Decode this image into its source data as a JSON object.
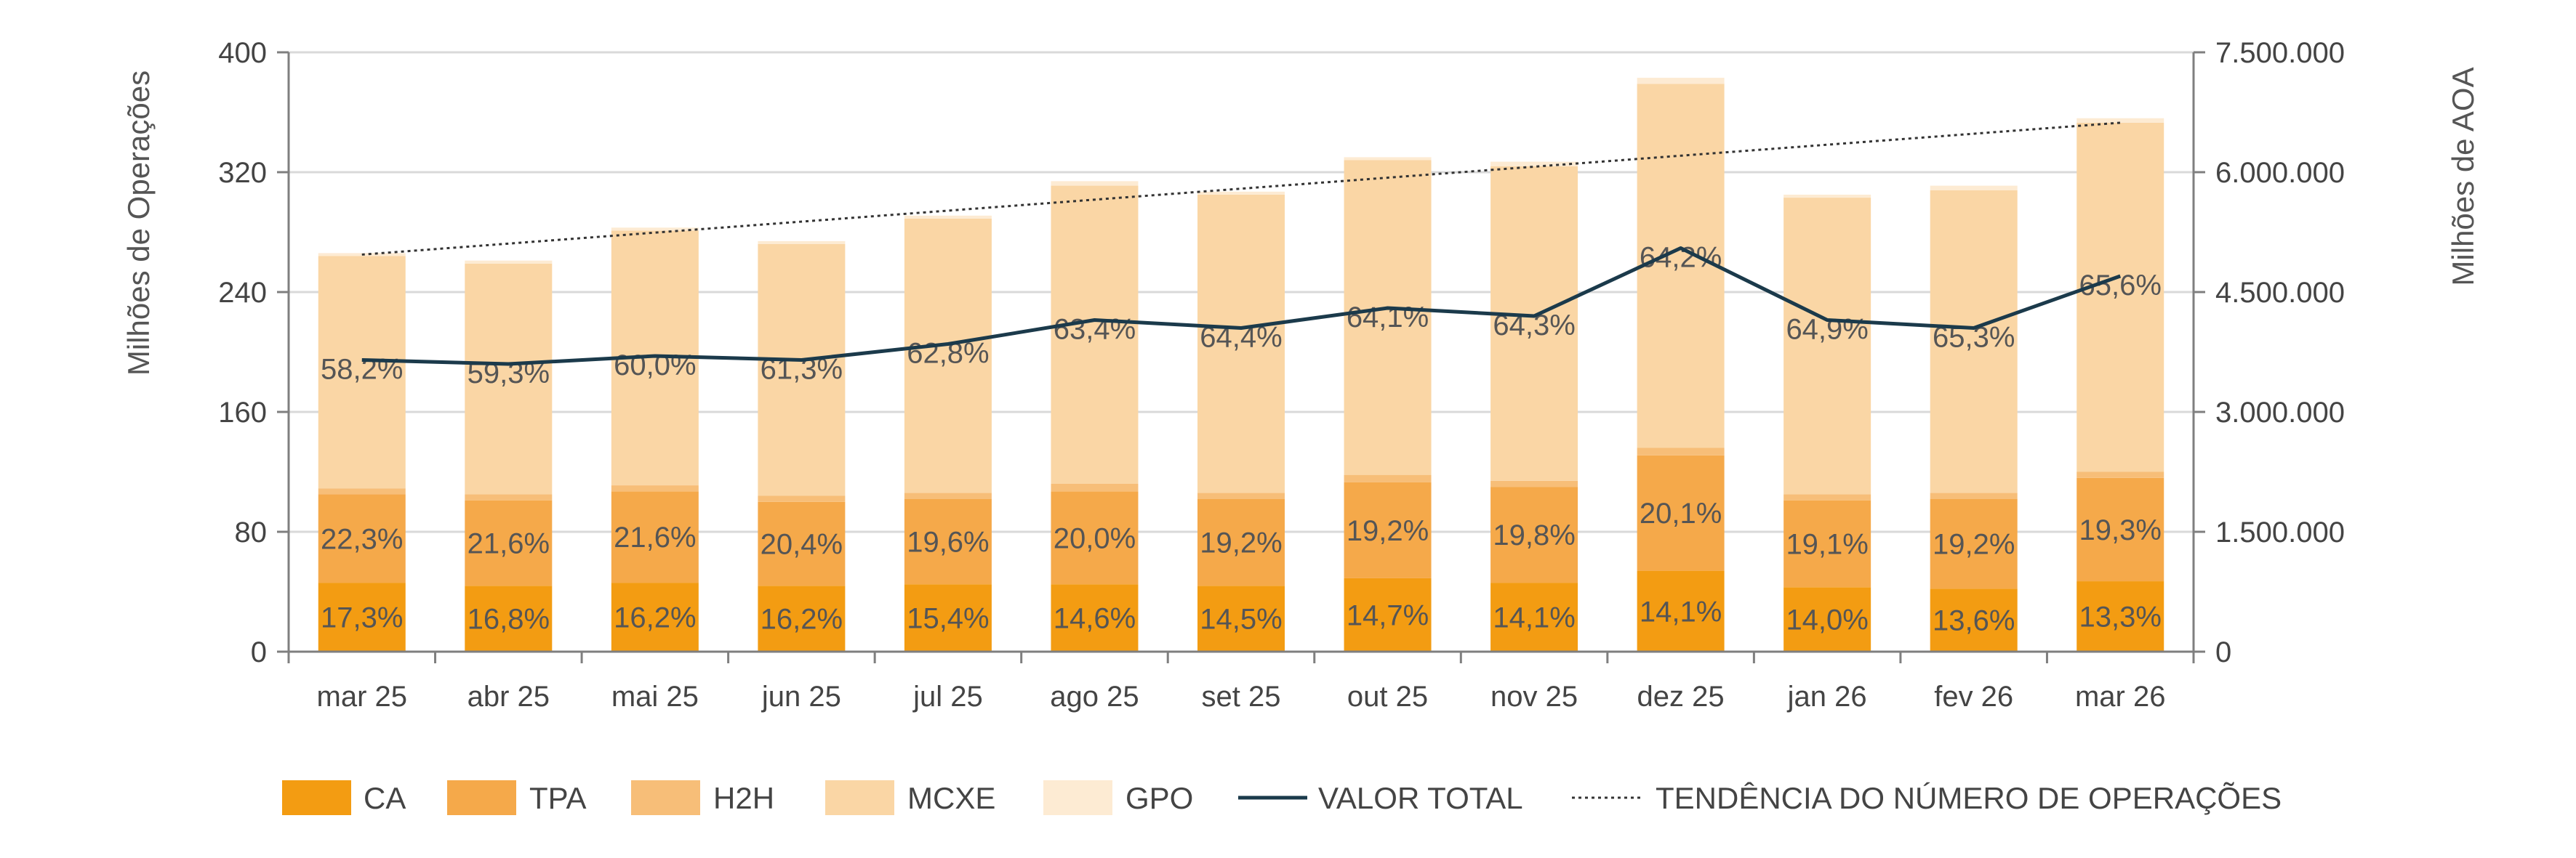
{
  "chart_data": {
    "type": "bar",
    "stacked": true,
    "categories": [
      "mar 25",
      "abr 25",
      "mai 25",
      "jun 25",
      "jul 25",
      "ago 25",
      "set 25",
      "out 25",
      "nov 25",
      "dez 25",
      "jan 26",
      "fev 26",
      "mar 26"
    ],
    "series": [
      {
        "name": "CA",
        "color": "#F39C12",
        "values": [
          46,
          44,
          46,
          44,
          45,
          45,
          44,
          49,
          46,
          54,
          43,
          42,
          47
        ]
      },
      {
        "name": "TPA",
        "color": "#F5A94A",
        "values": [
          59,
          57,
          61,
          56,
          57,
          62,
          58,
          64,
          64,
          77,
          58,
          60,
          69
        ]
      },
      {
        "name": "H2H",
        "color": "#F7BE78",
        "values": [
          4,
          4,
          4,
          4,
          4,
          5,
          4,
          5,
          4,
          5,
          4,
          4,
          4
        ]
      },
      {
        "name": "MCXE",
        "color": "#FAD6A5",
        "values": [
          155,
          154,
          170,
          168,
          183,
          199,
          199,
          210,
          210,
          243,
          198,
          202,
          233
        ]
      },
      {
        "name": "GPO",
        "color": "#FDEBD3",
        "values": [
          2,
          2,
          2,
          2,
          2,
          3,
          2,
          2,
          3,
          4,
          2,
          3,
          3
        ]
      }
    ],
    "bar_labels": {
      "CA": [
        "17,3%",
        "16,8%",
        "16,2%",
        "16,2%",
        "15,4%",
        "14,6%",
        "14,5%",
        "14,7%",
        "14,1%",
        "14,1%",
        "14,0%",
        "13,6%",
        "13,3%"
      ],
      "TPA": [
        "22,3%",
        "21,6%",
        "21,6%",
        "20,4%",
        "19,6%",
        "20,0%",
        "19,2%",
        "19,2%",
        "19,8%",
        "20,1%",
        "19,1%",
        "19,2%",
        "19,3%"
      ],
      "MCXE": [
        "58,2%",
        "59,3%",
        "60,0%",
        "61,3%",
        "62,8%",
        "63,4%",
        "64,4%",
        "64,1%",
        "64,3%",
        "64,2%",
        "64,9%",
        "65,3%",
        "65,6%"
      ]
    },
    "line_series": {
      "name": "VALOR TOTAL",
      "color": "#1B3A4B",
      "axis": "right",
      "values": [
        3650000,
        3600000,
        3700000,
        3650000,
        3850000,
        4150000,
        4050000,
        4300000,
        4200000,
        5050000,
        4150000,
        4050000,
        4700000
      ]
    },
    "trend_series": {
      "name": "TENDÊNCIA DO NÚMERO DE OPERAÇÕES",
      "color": "#333333",
      "start": 265,
      "end": 353
    },
    "ylabel": "Milhões de Operações",
    "y2label": "Milhões de AOA",
    "ylim": [
      0,
      400
    ],
    "yticks": [
      "0",
      "80",
      "160",
      "240",
      "320",
      "400"
    ],
    "y2lim": [
      0,
      7500000
    ],
    "y2ticks": [
      "0",
      "1.500.000",
      "3.000.000",
      "4.500.000",
      "6.000.000",
      "7.500.000"
    ],
    "grid": true,
    "legend": {
      "position": "bottom",
      "entries": [
        "CA",
        "TPA",
        "H2H",
        "MCXE",
        "GPO",
        "VALOR TOTAL",
        "TENDÊNCIA DO NÚMERO DE OPERAÇÕES"
      ]
    }
  }
}
